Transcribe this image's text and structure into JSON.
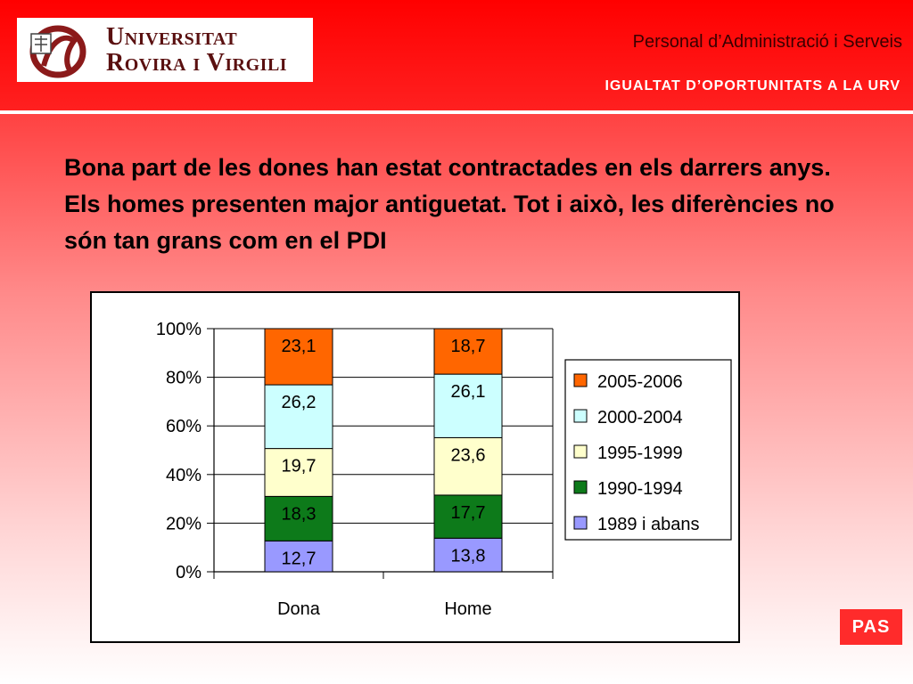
{
  "header": {
    "logo_line1": "Universitat",
    "logo_line2": "Rovira i Virgili",
    "subtitle": "Personal d’Administració i Serveis",
    "tagline": "IGUALTAT D’OPORTUNITATS A LA URV"
  },
  "headline": "Bona part de les dones han estat contractades en els darrers anys. Els homes presenten major antiguetat. Tot i això, les diferències no són tan grans com en el PDI",
  "badge": "PAS",
  "colors": {
    "header_red": "#ff0000",
    "badge_red": "#ff2b2b"
  },
  "chart_data": {
    "type": "bar",
    "stacked": "percent",
    "categories": [
      "Dona",
      "Home"
    ],
    "y_ticks": [
      "0%",
      "20%",
      "40%",
      "60%",
      "80%",
      "100%"
    ],
    "ylim": [
      0,
      100
    ],
    "grid": true,
    "legend_position": "right",
    "series": [
      {
        "name": "1989 i abans",
        "color": "#9999ff",
        "values": [
          12.7,
          13.8
        ],
        "labels": [
          "12,7",
          "13,8"
        ]
      },
      {
        "name": "1990-1994",
        "color": "#0d7a1a",
        "values": [
          18.3,
          17.7
        ],
        "labels": [
          "18,3",
          "17,7"
        ]
      },
      {
        "name": "1995-1999",
        "color": "#ffffcc",
        "values": [
          19.7,
          23.6
        ],
        "labels": [
          "19,7",
          "23,6"
        ]
      },
      {
        "name": "2000-2004",
        "color": "#ccffff",
        "values": [
          26.2,
          26.1
        ],
        "labels": [
          "26,2",
          "26,1"
        ]
      },
      {
        "name": "2005-2006",
        "color": "#ff6600",
        "values": [
          23.1,
          18.7
        ],
        "labels": [
          "23,1",
          "18,7"
        ]
      }
    ]
  }
}
